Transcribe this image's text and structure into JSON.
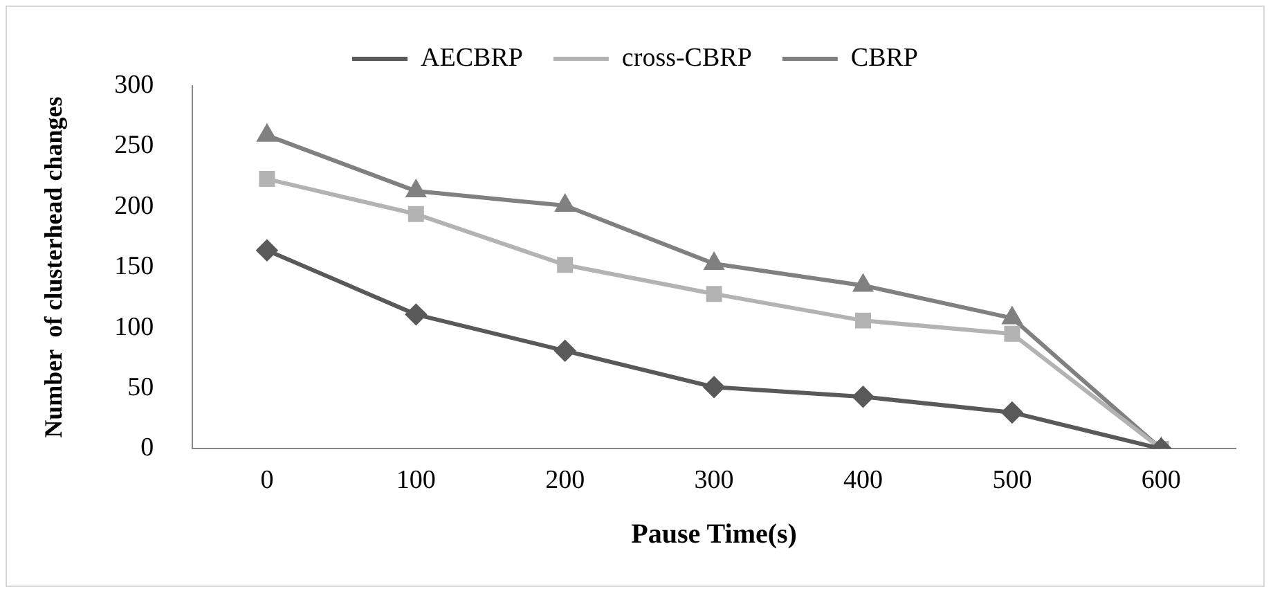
{
  "chart_data": {
    "type": "line",
    "xlabel": "Pause Time(s)",
    "ylabel": "Number  of clusterhead changes",
    "categories": [
      "0",
      "100",
      "200",
      "300",
      "400",
      "500",
      "600"
    ],
    "series": [
      {
        "name": "AECBRP",
        "color": "#595959",
        "marker": "diamond",
        "values": [
          164,
          111,
          81,
          51,
          43,
          30,
          0
        ]
      },
      {
        "name": "cross-CBRP",
        "color": "#b3b3b3",
        "marker": "square",
        "values": [
          223,
          194,
          152,
          128,
          106,
          95,
          0
        ]
      },
      {
        "name": "CBRP",
        "color": "#808080",
        "marker": "triangle",
        "values": [
          259,
          213,
          201,
          153,
          135,
          108,
          0
        ]
      }
    ],
    "ylim": [
      0,
      300
    ],
    "yticks": [
      0,
      50,
      100,
      150,
      200,
      250,
      300
    ],
    "grid": false,
    "legend": "top"
  }
}
